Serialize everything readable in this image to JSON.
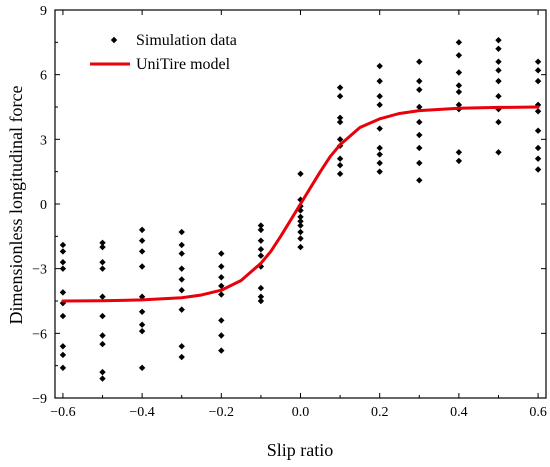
{
  "chart_data": {
    "type": "scatter",
    "xlabel": "Slip ratio",
    "ylabel": "Dimensionless longitudinal force",
    "xlim": [
      -0.62,
      0.62
    ],
    "ylim": [
      -9,
      9
    ],
    "xticks": [
      -0.6,
      -0.4,
      -0.2,
      0.0,
      0.2,
      0.4,
      0.6
    ],
    "xtick_labels": [
      "−0.6",
      "−0.4",
      "−0.2",
      "0.0",
      "0.2",
      "0.4",
      "0.6"
    ],
    "yticks": [
      -9,
      -6,
      -3,
      0,
      3,
      6,
      9
    ],
    "ytick_labels": [
      "−9",
      "−6",
      "−3",
      "0",
      "3",
      "6",
      "9"
    ],
    "grid": false,
    "legend_position": "top-left",
    "colors": {
      "scatter": "#000000",
      "line": "#e8000b"
    },
    "series": [
      {
        "name": "Simulation data",
        "kind": "scatter",
        "points": [
          [
            -0.6,
            -1.9
          ],
          [
            -0.6,
            -2.2
          ],
          [
            -0.6,
            -2.7
          ],
          [
            -0.6,
            -3.0
          ],
          [
            -0.6,
            -4.1
          ],
          [
            -0.6,
            -4.6
          ],
          [
            -0.6,
            -5.2
          ],
          [
            -0.6,
            -6.6
          ],
          [
            -0.6,
            -7.0
          ],
          [
            -0.6,
            -7.6
          ],
          [
            -0.5,
            -1.8
          ],
          [
            -0.5,
            -2.0
          ],
          [
            -0.5,
            -2.7
          ],
          [
            -0.5,
            -3.0
          ],
          [
            -0.5,
            -4.3
          ],
          [
            -0.5,
            -5.2
          ],
          [
            -0.5,
            -6.1
          ],
          [
            -0.5,
            -6.5
          ],
          [
            -0.5,
            -7.8
          ],
          [
            -0.5,
            -8.1
          ],
          [
            -0.4,
            -1.2
          ],
          [
            -0.4,
            -1.7
          ],
          [
            -0.4,
            -2.2
          ],
          [
            -0.4,
            -2.9
          ],
          [
            -0.4,
            -4.3
          ],
          [
            -0.4,
            -5.0
          ],
          [
            -0.4,
            -5.6
          ],
          [
            -0.4,
            -5.9
          ],
          [
            -0.4,
            -7.6
          ],
          [
            -0.3,
            -1.3
          ],
          [
            -0.3,
            -1.9
          ],
          [
            -0.3,
            -2.3
          ],
          [
            -0.3,
            -3.0
          ],
          [
            -0.3,
            -3.5
          ],
          [
            -0.3,
            -4.0
          ],
          [
            -0.3,
            -4.9
          ],
          [
            -0.3,
            -6.6
          ],
          [
            -0.3,
            -7.1
          ],
          [
            -0.2,
            -2.3
          ],
          [
            -0.2,
            -2.9
          ],
          [
            -0.2,
            -3.4
          ],
          [
            -0.2,
            -3.8
          ],
          [
            -0.2,
            -4.2
          ],
          [
            -0.2,
            -5.4
          ],
          [
            -0.2,
            -6.1
          ],
          [
            -0.2,
            -6.8
          ],
          [
            -0.1,
            -1.0
          ],
          [
            -0.1,
            -1.2
          ],
          [
            -0.1,
            -1.7
          ],
          [
            -0.1,
            -2.1
          ],
          [
            -0.1,
            -2.4
          ],
          [
            -0.1,
            -2.9
          ],
          [
            -0.1,
            -3.9
          ],
          [
            -0.1,
            -4.3
          ],
          [
            -0.1,
            -4.5
          ],
          [
            0.0,
            1.4
          ],
          [
            0.0,
            0.2
          ],
          [
            0.0,
            -0.1
          ],
          [
            0.0,
            -0.3
          ],
          [
            0.0,
            -0.6
          ],
          [
            0.0,
            -0.8
          ],
          [
            0.0,
            -1.0
          ],
          [
            0.0,
            -1.3
          ],
          [
            0.0,
            -1.6
          ],
          [
            0.0,
            -2.0
          ],
          [
            0.1,
            5.4
          ],
          [
            0.1,
            5.0
          ],
          [
            0.1,
            4.0
          ],
          [
            0.1,
            3.8
          ],
          [
            0.1,
            3.0
          ],
          [
            0.1,
            2.7
          ],
          [
            0.1,
            2.1
          ],
          [
            0.1,
            1.8
          ],
          [
            0.1,
            1.4
          ],
          [
            0.2,
            6.4
          ],
          [
            0.2,
            5.7
          ],
          [
            0.2,
            5.0
          ],
          [
            0.2,
            4.6
          ],
          [
            0.2,
            3.5
          ],
          [
            0.2,
            2.6
          ],
          [
            0.2,
            2.3
          ],
          [
            0.2,
            1.9
          ],
          [
            0.2,
            1.5
          ],
          [
            0.3,
            6.6
          ],
          [
            0.3,
            5.7
          ],
          [
            0.3,
            5.3
          ],
          [
            0.3,
            4.5
          ],
          [
            0.3,
            3.8
          ],
          [
            0.3,
            3.2
          ],
          [
            0.3,
            2.6
          ],
          [
            0.3,
            1.9
          ],
          [
            0.3,
            1.1
          ],
          [
            0.4,
            7.5
          ],
          [
            0.4,
            6.9
          ],
          [
            0.4,
            6.1
          ],
          [
            0.4,
            5.5
          ],
          [
            0.4,
            5.2
          ],
          [
            0.4,
            4.6
          ],
          [
            0.4,
            4.4
          ],
          [
            0.4,
            2.4
          ],
          [
            0.4,
            2.0
          ],
          [
            0.5,
            7.6
          ],
          [
            0.5,
            7.2
          ],
          [
            0.5,
            6.6
          ],
          [
            0.5,
            6.2
          ],
          [
            0.5,
            5.7
          ],
          [
            0.5,
            5.0
          ],
          [
            0.5,
            4.4
          ],
          [
            0.5,
            3.8
          ],
          [
            0.5,
            2.4
          ],
          [
            0.6,
            6.6
          ],
          [
            0.6,
            6.2
          ],
          [
            0.6,
            5.7
          ],
          [
            0.6,
            4.6
          ],
          [
            0.6,
            4.3
          ],
          [
            0.6,
            3.4
          ],
          [
            0.6,
            2.6
          ],
          [
            0.6,
            2.1
          ],
          [
            0.6,
            1.6
          ]
        ]
      },
      {
        "name": "UniTire model",
        "kind": "line",
        "points": [
          [
            -0.6,
            -4.5
          ],
          [
            -0.5,
            -4.49
          ],
          [
            -0.4,
            -4.45
          ],
          [
            -0.3,
            -4.35
          ],
          [
            -0.25,
            -4.22
          ],
          [
            -0.2,
            -4.0
          ],
          [
            -0.15,
            -3.55
          ],
          [
            -0.1,
            -2.75
          ],
          [
            -0.075,
            -2.2
          ],
          [
            -0.05,
            -1.5
          ],
          [
            -0.025,
            -0.75
          ],
          [
            0.0,
            0.0
          ],
          [
            0.025,
            0.75
          ],
          [
            0.05,
            1.5
          ],
          [
            0.075,
            2.2
          ],
          [
            0.1,
            2.75
          ],
          [
            0.15,
            3.55
          ],
          [
            0.2,
            3.95
          ],
          [
            0.25,
            4.2
          ],
          [
            0.3,
            4.33
          ],
          [
            0.4,
            4.44
          ],
          [
            0.5,
            4.48
          ],
          [
            0.6,
            4.5
          ]
        ]
      }
    ]
  }
}
